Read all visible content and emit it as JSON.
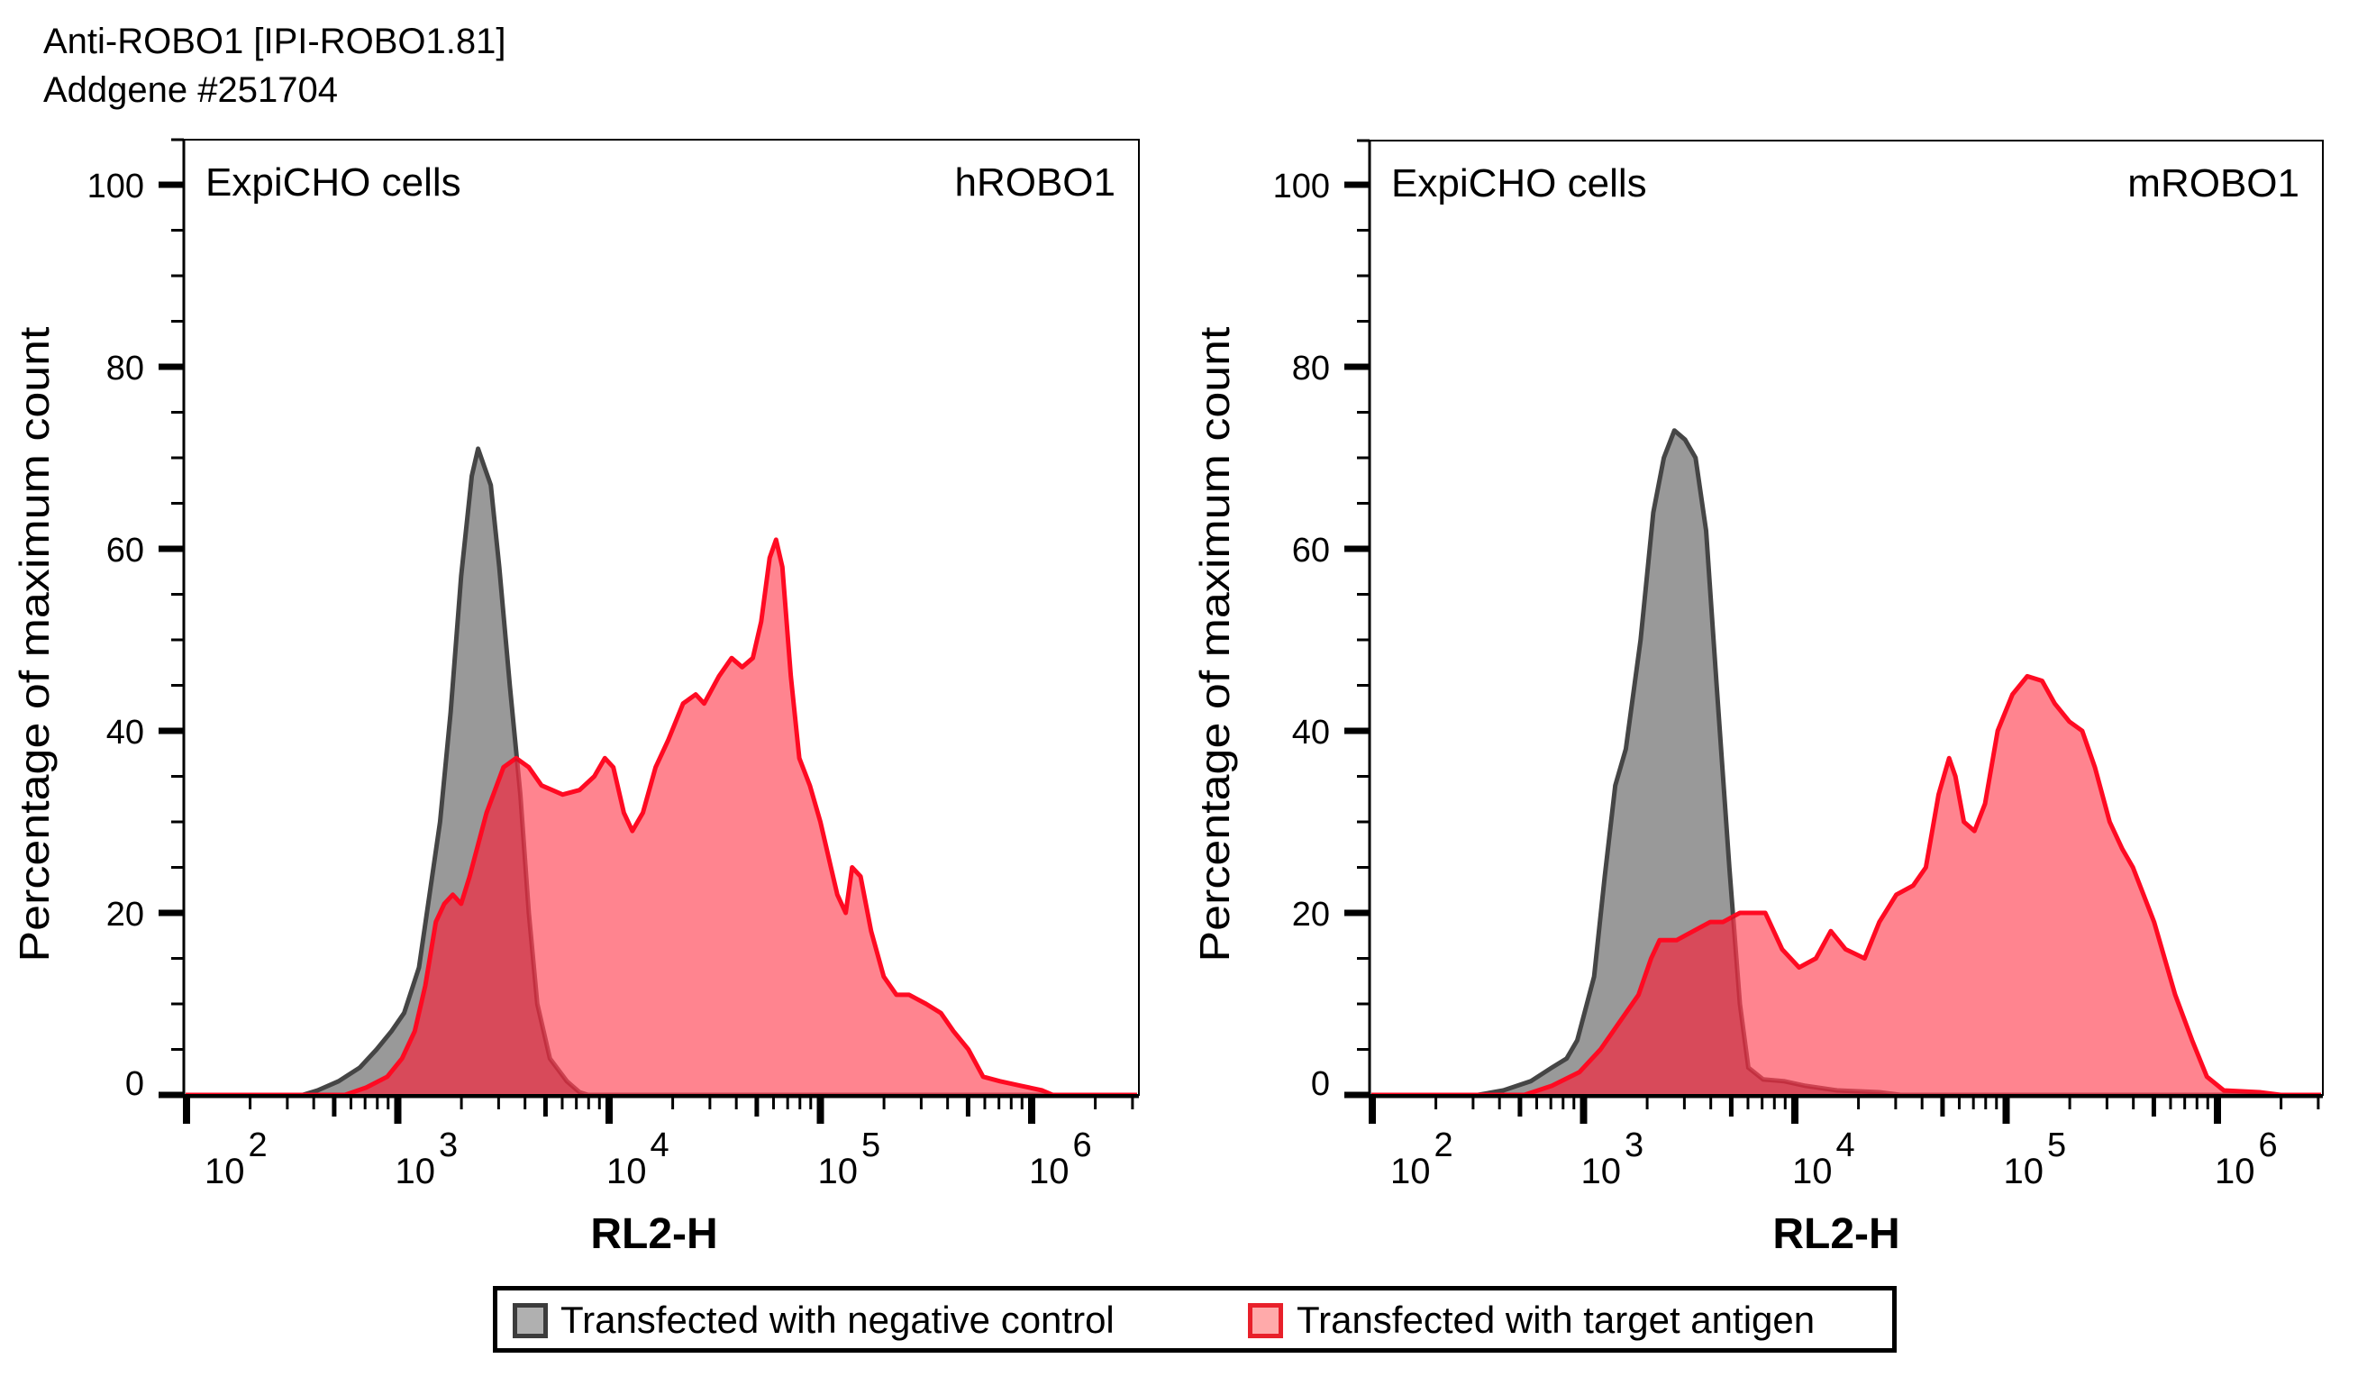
{
  "header": {
    "title_line1": "Anti-ROBO1 [IPI-ROBO1.81]",
    "title_line2": "Addgene #251704"
  },
  "colors": {
    "negative_fill": "#999999",
    "negative_line": "#454545",
    "positive_fill": "#ff7a85",
    "positive_line": "#ff0a22",
    "overlap_fill": "#d84a5a"
  },
  "legend": {
    "negative": "Transfected with negative control",
    "positive": "Transfected with target antigen"
  },
  "chart_data": [
    {
      "type": "area",
      "title_left": "ExpiCHO cells",
      "title_right": "hROBO1",
      "xlabel": "RL2-H",
      "ylabel": "Percentage of maximum count",
      "xscale": "log10",
      "xlim_log10": [
        2,
        6.52
      ],
      "ylim": [
        0,
        105
      ],
      "yticks": [
        "0",
        "20",
        "40",
        "60",
        "80",
        "100"
      ],
      "xticks": [
        {
          "base": "10",
          "exp": "2"
        },
        {
          "base": "10",
          "exp": "3"
        },
        {
          "base": "10",
          "exp": "4"
        },
        {
          "base": "10",
          "exp": "5"
        },
        {
          "base": "10",
          "exp": "6"
        }
      ],
      "series": [
        {
          "name": "Transfected with negative control",
          "x_log10": [
            2.55,
            2.62,
            2.72,
            2.82,
            2.9,
            2.97,
            3.03,
            3.1,
            3.15,
            3.2,
            3.25,
            3.3,
            3.35,
            3.38,
            3.41,
            3.44,
            3.48,
            3.53,
            3.58,
            3.62,
            3.66,
            3.72,
            3.8,
            3.86,
            3.9
          ],
          "y": [
            0,
            0.5,
            1.5,
            3,
            5,
            7,
            9,
            14,
            22,
            30,
            42,
            57,
            68,
            71,
            69,
            67,
            58,
            45,
            33,
            20,
            10,
            4,
            1.5,
            0.3,
            0
          ]
        },
        {
          "name": "Transfected with target antigen",
          "x_log10": [
            2.75,
            2.85,
            2.95,
            3.02,
            3.08,
            3.13,
            3.18,
            3.22,
            3.26,
            3.3,
            3.34,
            3.42,
            3.5,
            3.56,
            3.62,
            3.68,
            3.78,
            3.86,
            3.93,
            3.98,
            4.02,
            4.07,
            4.11,
            4.16,
            4.22,
            4.28,
            4.35,
            4.41,
            4.45,
            4.52,
            4.58,
            4.63,
            4.68,
            4.72,
            4.76,
            4.79,
            4.82,
            4.86,
            4.9,
            4.95,
            5.0,
            5.05,
            5.08,
            5.12,
            5.15,
            5.19,
            5.24,
            5.3,
            5.36,
            5.42,
            5.5,
            5.57,
            5.63,
            5.7,
            5.77,
            5.85,
            5.95,
            6.05,
            6.1
          ],
          "y": [
            0,
            0.8,
            2,
            4,
            7,
            12,
            19,
            21,
            22,
            21,
            24,
            31,
            36,
            37,
            36,
            34,
            33,
            33.5,
            35,
            37,
            36,
            31,
            29,
            31,
            36,
            39,
            43,
            44,
            43,
            46,
            48,
            47,
            48,
            52,
            59,
            61,
            58,
            46,
            37,
            34,
            30,
            25,
            22,
            20,
            25,
            24,
            18,
            13,
            11,
            11,
            10,
            9,
            7,
            5,
            2,
            1.5,
            1,
            0.5,
            0
          ]
        }
      ]
    },
    {
      "type": "area",
      "title_left": "ExpiCHO cells",
      "title_right": "mROBO1",
      "xlabel": "RL2-H",
      "ylabel": "Percentage of maximum count",
      "xscale": "log10",
      "xlim_log10": [
        2,
        6.52
      ],
      "ylim": [
        0,
        105
      ],
      "yticks": [
        "0",
        "20",
        "40",
        "60",
        "80",
        "100"
      ],
      "xticks": [
        {
          "base": "10",
          "exp": "2"
        },
        {
          "base": "10",
          "exp": "3"
        },
        {
          "base": "10",
          "exp": "4"
        },
        {
          "base": "10",
          "exp": "5"
        },
        {
          "base": "10",
          "exp": "6"
        }
      ],
      "series": [
        {
          "name": "Transfected with negative control",
          "x_log10": [
            2.5,
            2.62,
            2.75,
            2.85,
            2.92,
            2.97,
            3.05,
            3.1,
            3.15,
            3.2,
            3.27,
            3.33,
            3.38,
            3.43,
            3.48,
            3.53,
            3.58,
            3.63,
            3.69,
            3.74,
            3.78,
            3.85,
            3.95,
            4.05,
            4.2,
            4.4,
            4.5
          ],
          "y": [
            0,
            0.5,
            1.5,
            3,
            4,
            6,
            13,
            24,
            34,
            38,
            50,
            64,
            70,
            73,
            72,
            70,
            62,
            45,
            25,
            10,
            3,
            1.7,
            1.5,
            1,
            0.5,
            0.3,
            0
          ]
        },
        {
          "name": "Transfected with target antigen",
          "x_log10": [
            2.72,
            2.85,
            2.98,
            3.08,
            3.17,
            3.26,
            3.32,
            3.36,
            3.44,
            3.52,
            3.6,
            3.66,
            3.74,
            3.86,
            3.94,
            4.02,
            4.1,
            4.17,
            4.24,
            4.33,
            4.4,
            4.48,
            4.56,
            4.62,
            4.68,
            4.73,
            4.76,
            4.8,
            4.85,
            4.9,
            4.96,
            5.03,
            5.1,
            5.17,
            5.23,
            5.3,
            5.36,
            5.42,
            5.49,
            5.55,
            5.6,
            5.7,
            5.8,
            5.88,
            5.95,
            6.03,
            6.2,
            6.3
          ],
          "y": [
            0,
            1,
            2.5,
            5,
            8,
            11,
            15,
            17,
            17,
            18,
            19,
            19,
            20,
            20,
            16,
            14,
            15,
            18,
            16,
            15,
            19,
            22,
            23,
            25,
            33,
            37,
            35,
            30,
            29,
            32,
            40,
            44,
            46,
            45.5,
            43,
            41,
            40,
            36,
            30,
            27,
            25,
            19,
            11,
            6,
            2,
            0.5,
            0.3,
            0
          ]
        }
      ]
    }
  ]
}
